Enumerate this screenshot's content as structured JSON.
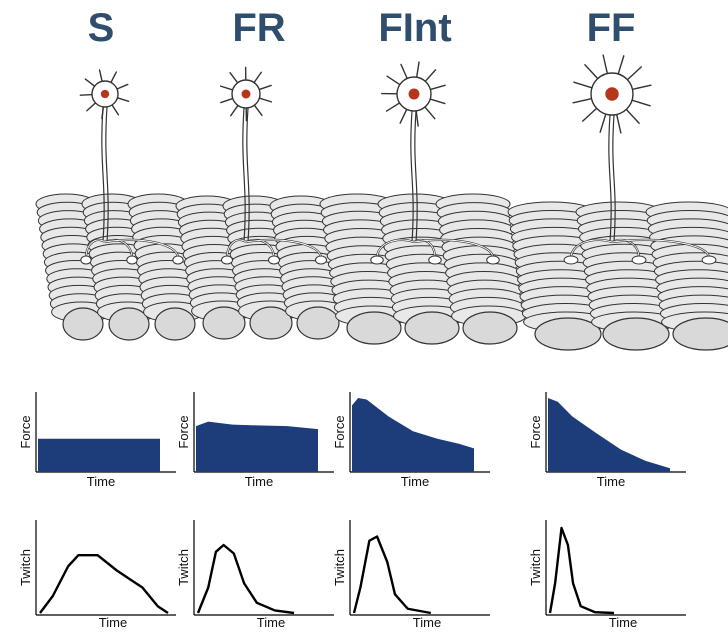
{
  "colors": {
    "title": "#2f4e6e",
    "force_fill": "#1c3d7a",
    "nucleus": "#b5361c",
    "fiber_fill": "#e8e8e8",
    "outline": "#333333"
  },
  "units": [
    {
      "name": "S",
      "force_label": "Force",
      "force_xlabel": "Time",
      "twitch_label": "Twitch",
      "twitch_xlabel": "Time",
      "force_profile": [
        [
          0,
          0.45
        ],
        [
          1,
          0.45
        ]
      ],
      "twitch_profile": [
        [
          0,
          0
        ],
        [
          0.1,
          0.2
        ],
        [
          0.22,
          0.55
        ],
        [
          0.3,
          0.68
        ],
        [
          0.45,
          0.68
        ],
        [
          0.6,
          0.5
        ],
        [
          0.8,
          0.3
        ],
        [
          0.92,
          0.08
        ],
        [
          1,
          0
        ]
      ]
    },
    {
      "name": "FR",
      "force_label": "Force",
      "force_xlabel": "Time",
      "twitch_label": "Twitch",
      "twitch_xlabel": "Time",
      "force_profile": [
        [
          0,
          0.62
        ],
        [
          0.1,
          0.68
        ],
        [
          0.3,
          0.64
        ],
        [
          0.5,
          0.63
        ],
        [
          0.75,
          0.62
        ],
        [
          1,
          0.58
        ]
      ],
      "twitch_profile": [
        [
          0,
          0
        ],
        [
          0.08,
          0.3
        ],
        [
          0.14,
          0.72
        ],
        [
          0.2,
          0.8
        ],
        [
          0.28,
          0.7
        ],
        [
          0.36,
          0.35
        ],
        [
          0.46,
          0.12
        ],
        [
          0.6,
          0.03
        ],
        [
          0.75,
          0
        ]
      ]
    },
    {
      "name": "FInt",
      "force_label": "Force",
      "force_xlabel": "Time",
      "twitch_label": "Twitch",
      "twitch_xlabel": "Time",
      "force_profile": [
        [
          0,
          0.9
        ],
        [
          0.05,
          1.0
        ],
        [
          0.12,
          0.98
        ],
        [
          0.3,
          0.75
        ],
        [
          0.5,
          0.55
        ],
        [
          0.7,
          0.45
        ],
        [
          0.88,
          0.38
        ],
        [
          1,
          0.32
        ]
      ],
      "twitch_profile": [
        [
          0,
          0
        ],
        [
          0.05,
          0.3
        ],
        [
          0.12,
          0.85
        ],
        [
          0.18,
          0.9
        ],
        [
          0.26,
          0.6
        ],
        [
          0.32,
          0.22
        ],
        [
          0.42,
          0.05
        ],
        [
          0.6,
          0
        ]
      ]
    },
    {
      "name": "FF",
      "force_label": "Force",
      "force_xlabel": "Time",
      "twitch_label": "Twitch",
      "twitch_xlabel": "Time",
      "force_profile": [
        [
          0,
          1.0
        ],
        [
          0.08,
          0.95
        ],
        [
          0.2,
          0.75
        ],
        [
          0.4,
          0.52
        ],
        [
          0.6,
          0.3
        ],
        [
          0.8,
          0.15
        ],
        [
          1,
          0.05
        ]
      ],
      "twitch_profile": [
        [
          0,
          0
        ],
        [
          0.04,
          0.35
        ],
        [
          0.09,
          1.0
        ],
        [
          0.14,
          0.8
        ],
        [
          0.18,
          0.35
        ],
        [
          0.24,
          0.08
        ],
        [
          0.35,
          0.01
        ],
        [
          0.5,
          0
        ]
      ]
    }
  ]
}
